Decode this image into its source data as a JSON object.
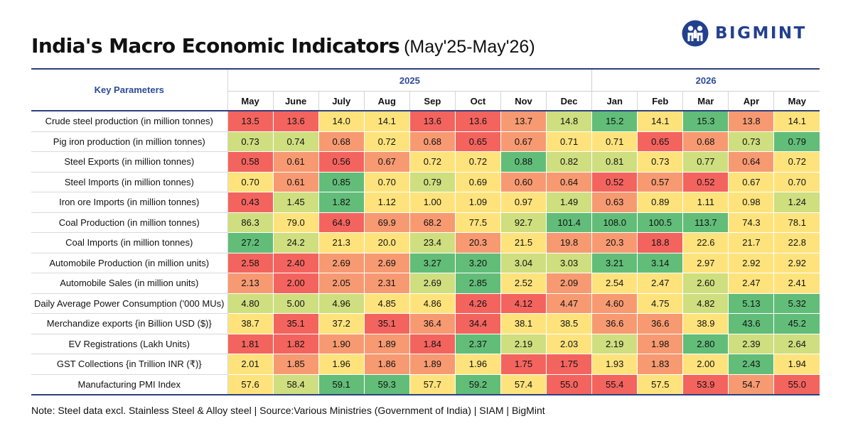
{
  "title": "India's Macro Economic Indicators",
  "subtitle": "(May'25-May'26)",
  "brand": "BIGMINT",
  "note": "Note: Steel data excl. Stainless Steel & Alloy steel | Source:Various Ministries (Government of India) | SIAM | BigMint",
  "colors": {
    "scale": [
      "#f4645f",
      "#f79a72",
      "#fee37d",
      "#cfde7f",
      "#62bd79"
    ],
    "header_text": "#2e4a9a",
    "brand": "#22408e"
  },
  "chart_data": {
    "type": "heatmap",
    "row_header": "Key Parameters",
    "years": [
      {
        "label": "2025",
        "span": 8
      },
      {
        "label": "2026",
        "span": 5
      }
    ],
    "columns": [
      "May",
      "June",
      "July",
      "Aug",
      "Sep",
      "Oct",
      "Nov",
      "Dec",
      "Jan",
      "Feb",
      "Mar",
      "Apr",
      "May"
    ],
    "rows": [
      {
        "label": "Crude steel production (in million tonnes)",
        "values": [
          "13.5",
          "13.6",
          "14.0",
          "14.1",
          "13.6",
          "13.6",
          "13.7",
          "14.8",
          "15.2",
          "14.1",
          "15.3",
          "13.8",
          "14.1"
        ]
      },
      {
        "label": "Pig iron production (in million tonnes)",
        "values": [
          "0.73",
          "0.74",
          "0.68",
          "0.72",
          "0.68",
          "0.65",
          "0.67",
          "0.71",
          "0.71",
          "0.65",
          "0.68",
          "0.73",
          "0.79"
        ]
      },
      {
        "label": "Steel Exports (in million tonnes)",
        "values": [
          "0.58",
          "0.61",
          "0.56",
          "0.67",
          "0.72",
          "0.72",
          "0.88",
          "0.82",
          "0.81",
          "0.73",
          "0.77",
          "0.64",
          "0.72"
        ]
      },
      {
        "label": "Steel Imports (in million tonnes)",
        "values": [
          "0.70",
          "0.61",
          "0.85",
          "0.70",
          "0.79",
          "0.69",
          "0.60",
          "0.64",
          "0.52",
          "0.57",
          "0.52",
          "0.67",
          "0.70"
        ]
      },
      {
        "label": "Iron ore Imports (in million tonnes)",
        "values": [
          "0.43",
          "1.45",
          "1.82",
          "1.12",
          "1.00",
          "1.09",
          "0.97",
          "1.49",
          "0.63",
          "0.89",
          "1.11",
          "0.98",
          "1.24"
        ]
      },
      {
        "label": "Coal Production (in million tonnes)",
        "values": [
          "86.3",
          "79.0",
          "64.9",
          "69.9",
          "68.2",
          "77.5",
          "92.7",
          "101.4",
          "108.0",
          "100.5",
          "113.7",
          "74.3",
          "78.1"
        ]
      },
      {
        "label": "Coal Imports (in million tonnes)",
        "values": [
          "27.2",
          "24.2",
          "21.3",
          "20.0",
          "23.4",
          "20.3",
          "21.5",
          "19.8",
          "20.3",
          "18.8",
          "22.6",
          "21.7",
          "22.8"
        ]
      },
      {
        "label": "Automobile Production (in million units)",
        "values": [
          "2.58",
          "2.40",
          "2.69",
          "2.69",
          "3.27",
          "3.20",
          "3.04",
          "3.03",
          "3.21",
          "3.14",
          "2.97",
          "2.92",
          "2.92"
        ]
      },
      {
        "label": "Automobile Sales (in million units)",
        "values": [
          "2.13",
          "2.00",
          "2.05",
          "2.31",
          "2.69",
          "2.85",
          "2.52",
          "2.09",
          "2.54",
          "2.47",
          "2.60",
          "2.47",
          "2.41"
        ]
      },
      {
        "label": "Daily Average Power Consumption ('000 MUs)",
        "values": [
          "4.80",
          "5.00",
          "4.96",
          "4.85",
          "4.86",
          "4.26",
          "4.12",
          "4.47",
          "4.60",
          "4.75",
          "4.82",
          "5.13",
          "5.32"
        ]
      },
      {
        "label": "Merchandize exports {in Billion USD ($)}",
        "values": [
          "38.7",
          "35.1",
          "37.2",
          "35.1",
          "36.4",
          "34.4",
          "38.1",
          "38.5",
          "36.6",
          "36.6",
          "38.9",
          "43.6",
          "45.2"
        ]
      },
      {
        "label": "EV Registrations (Lakh Units)",
        "values": [
          "1.81",
          "1.82",
          "1.90",
          "1.89",
          "1.84",
          "2.37",
          "2.19",
          "2.03",
          "2.19",
          "1.98",
          "2.80",
          "2.39",
          "2.64"
        ]
      },
      {
        "label": "GST Collections {in Trillion INR (₹)}",
        "values": [
          "2.01",
          "1.85",
          "1.96",
          "1.86",
          "1.89",
          "1.96",
          "1.75",
          "1.75",
          "1.93",
          "1.83",
          "2.00",
          "2.43",
          "1.94"
        ]
      },
      {
        "label": "Manufacturing PMI Index",
        "values": [
          "57.6",
          "58.4",
          "59.1",
          "59.3",
          "57.7",
          "59.2",
          "57.4",
          "55.0",
          "55.4",
          "57.5",
          "53.9",
          "54.7",
          "55.0"
        ]
      }
    ],
    "color_levels": [
      [
        0,
        0,
        2,
        2,
        0,
        0,
        1,
        3,
        4,
        2,
        4,
        1,
        2
      ],
      [
        3,
        3,
        1,
        2,
        1,
        0,
        1,
        2,
        2,
        0,
        1,
        3,
        4
      ],
      [
        0,
        1,
        0,
        1,
        2,
        2,
        4,
        3,
        3,
        2,
        3,
        1,
        2
      ],
      [
        2,
        1,
        4,
        2,
        3,
        2,
        1,
        1,
        0,
        1,
        0,
        2,
        2
      ],
      [
        0,
        3,
        4,
        2,
        2,
        2,
        2,
        3,
        1,
        2,
        2,
        2,
        3
      ],
      [
        3,
        2,
        0,
        1,
        1,
        2,
        3,
        4,
        4,
        4,
        4,
        2,
        2
      ],
      [
        4,
        3,
        2,
        2,
        3,
        1,
        2,
        1,
        1,
        0,
        2,
        2,
        2
      ],
      [
        0,
        0,
        1,
        1,
        4,
        4,
        3,
        3,
        4,
        4,
        2,
        2,
        2
      ],
      [
        1,
        0,
        1,
        1,
        3,
        4,
        2,
        1,
        2,
        2,
        3,
        2,
        2
      ],
      [
        3,
        3,
        3,
        2,
        2,
        0,
        0,
        1,
        1,
        2,
        3,
        4,
        4
      ],
      [
        2,
        0,
        2,
        0,
        1,
        0,
        2,
        2,
        1,
        1,
        2,
        4,
        4
      ],
      [
        0,
        0,
        1,
        1,
        0,
        4,
        3,
        2,
        3,
        1,
        4,
        3,
        3
      ],
      [
        2,
        1,
        2,
        1,
        1,
        2,
        0,
        0,
        2,
        1,
        2,
        4,
        2
      ],
      [
        2,
        3,
        4,
        4,
        2,
        4,
        2,
        0,
        0,
        2,
        0,
        1,
        0
      ]
    ]
  }
}
